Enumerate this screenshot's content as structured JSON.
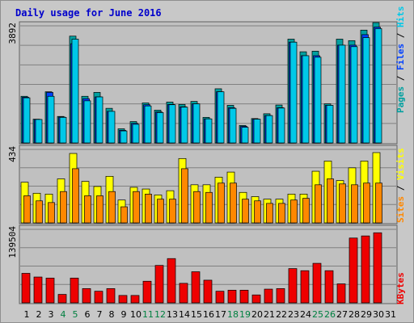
{
  "title": "Daily usage for June 2016",
  "colors": {
    "hits": "#00c8e8",
    "files": "#0040ff",
    "pages": "#00a0a0",
    "visits": "#ffff00",
    "sites": "#ff8800",
    "kbytes": "#ee0000",
    "weekend_day": "#008040",
    "weekday": "#000000"
  },
  "chart_data": [
    {
      "type": "bar",
      "panel": "hits-files-pages",
      "legend_placement": "right, vertical",
      "legend": {
        "pages": "Pages",
        "sep1": " / ",
        "files": "Files",
        "sep2": " / ",
        "hits": "Hits"
      },
      "ymax_label": "3892",
      "ylim": [
        0,
        3892
      ],
      "categories": [
        "1",
        "2",
        "3",
        "4",
        "5",
        "6",
        "7",
        "8",
        "9",
        "10",
        "11",
        "12",
        "13",
        "14",
        "15",
        "16",
        "17",
        "18",
        "19",
        "20",
        "21",
        "22",
        "23",
        "24",
        "25",
        "26",
        "27",
        "28",
        "29",
        "30",
        "31"
      ],
      "series": [
        {
          "name": "Hits",
          "values": [
            1500,
            780,
            1550,
            850,
            3450,
            1400,
            1530,
            1050,
            400,
            620,
            1230,
            1010,
            1270,
            1190,
            1300,
            800,
            1700,
            1150,
            520,
            790,
            910,
            1160,
            3350,
            2900,
            2850,
            1250,
            3250,
            3200,
            3500,
            3800,
            0
          ]
        },
        {
          "name": "Files",
          "values": [
            1520,
            780,
            1680,
            860,
            3300,
            1470,
            1530,
            1050,
            420,
            650,
            1270,
            1030,
            1280,
            1200,
            1300,
            800,
            1700,
            1170,
            550,
            790,
            910,
            1170,
            3350,
            2900,
            2900,
            1250,
            3250,
            3250,
            3600,
            3850,
            0
          ]
        },
        {
          "name": "Pages",
          "values": [
            1550,
            790,
            1700,
            880,
            3550,
            1550,
            1680,
            1150,
            470,
            710,
            1330,
            1090,
            1360,
            1280,
            1380,
            850,
            1800,
            1250,
            580,
            810,
            970,
            1260,
            3450,
            3030,
            3050,
            1300,
            3450,
            3400,
            3750,
            4000,
            0
          ]
        }
      ],
      "weekend_days": [
        "4",
        "5",
        "11",
        "12",
        "18",
        "19",
        "25",
        "26"
      ]
    },
    {
      "type": "bar",
      "panel": "visits-sites",
      "legend_placement": "right, vertical",
      "legend": {
        "sites": "Sites",
        "sep": " / ",
        "visits": "Visits"
      },
      "ymax_label": "434",
      "ylim": [
        0,
        434
      ],
      "categories": [
        "1",
        "2",
        "3",
        "4",
        "5",
        "6",
        "7",
        "8",
        "9",
        "10",
        "11",
        "12",
        "13",
        "14",
        "15",
        "16",
        "17",
        "18",
        "19",
        "20",
        "21",
        "22",
        "23",
        "24",
        "25",
        "26",
        "27",
        "28",
        "29",
        "30",
        "31"
      ],
      "series": [
        {
          "name": "Visits",
          "values": [
            240,
            175,
            170,
            260,
            410,
            245,
            215,
            275,
            135,
            210,
            200,
            165,
            190,
            380,
            225,
            225,
            270,
            300,
            180,
            155,
            140,
            140,
            170,
            170,
            305,
            365,
            250,
            325,
            365,
            415,
            0
          ]
        },
        {
          "name": "Sites",
          "values": [
            160,
            130,
            120,
            185,
            320,
            160,
            160,
            185,
            95,
            185,
            170,
            140,
            140,
            320,
            185,
            180,
            235,
            235,
            140,
            130,
            115,
            115,
            135,
            145,
            225,
            260,
            230,
            225,
            235,
            235,
            0
          ]
        }
      ]
    },
    {
      "type": "bar",
      "panel": "kbytes",
      "legend_placement": "right, vertical",
      "legend": {
        "kbytes": "KBytes"
      },
      "ymax_label": "139504",
      "ylim": [
        0,
        139504
      ],
      "categories": [
        "1",
        "2",
        "3",
        "4",
        "5",
        "6",
        "7",
        "8",
        "9",
        "10",
        "11",
        "12",
        "13",
        "14",
        "15",
        "16",
        "17",
        "18",
        "19",
        "20",
        "21",
        "22",
        "23",
        "24",
        "25",
        "26",
        "27",
        "28",
        "29",
        "30",
        "31"
      ],
      "series": [
        {
          "name": "KBytes",
          "values": [
            56000,
            49000,
            47000,
            16000,
            47000,
            27000,
            22000,
            27000,
            14000,
            14000,
            41000,
            71000,
            84000,
            37000,
            59000,
            43000,
            22000,
            24000,
            24000,
            15000,
            26000,
            27000,
            65000,
            61000,
            75000,
            61000,
            36000,
            123000,
            127000,
            133000,
            0
          ]
        }
      ]
    }
  ]
}
